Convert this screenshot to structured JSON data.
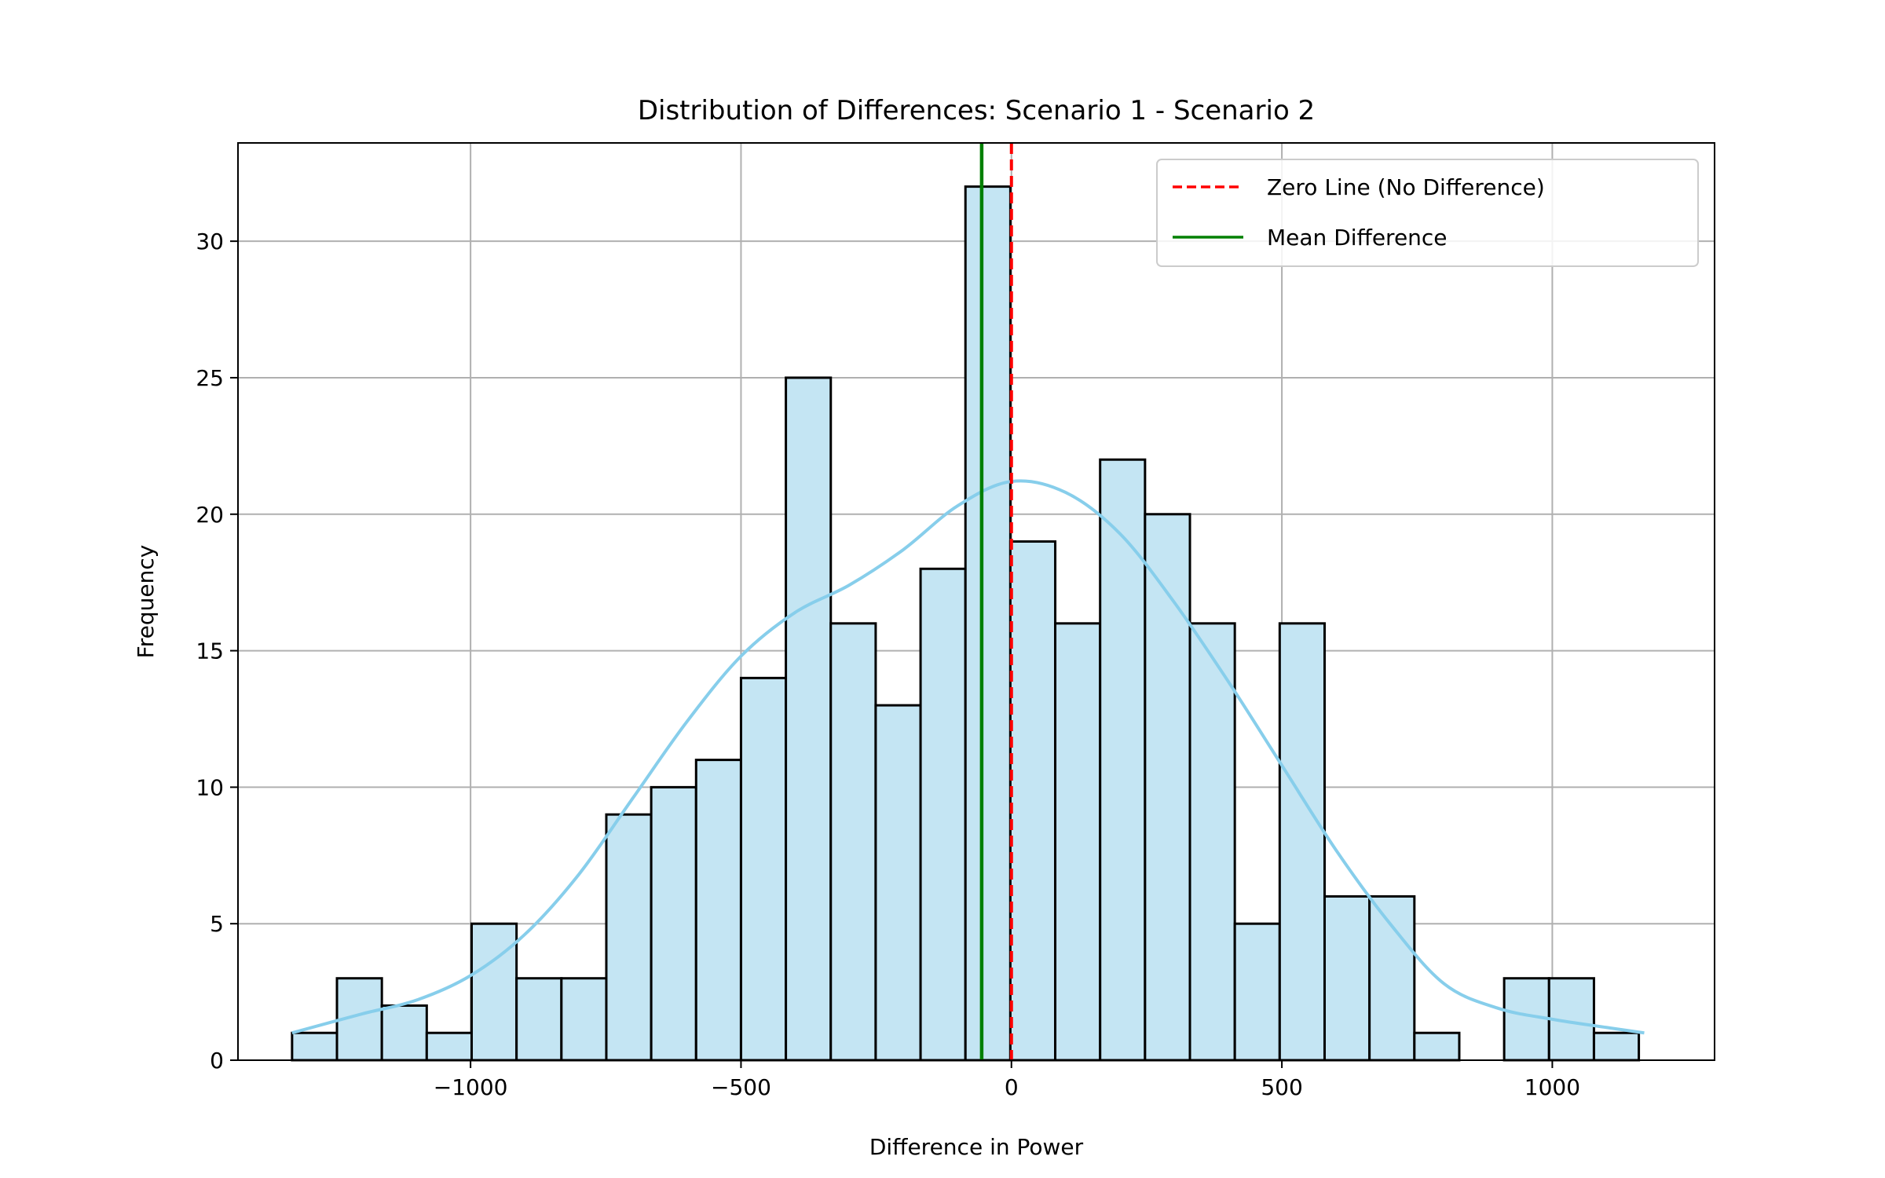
{
  "chart_data": {
    "type": "bar",
    "title": "Distribution of Differences: Scenario 1 - Scenario 2",
    "xlabel": "Difference in Power",
    "ylabel": "Frequency",
    "xlim": [
      -1430,
      1300
    ],
    "ylim": [
      0,
      33.6
    ],
    "grid": true,
    "legend_position": "top-right",
    "bin_edges": [
      -1330,
      -1247,
      -1164,
      -1081,
      -998,
      -915,
      -832,
      -749,
      -666,
      -583,
      -500,
      -417,
      -334,
      -251,
      -168,
      -85,
      -2,
      81,
      164,
      247,
      330,
      413,
      496,
      579,
      662,
      745,
      828,
      911,
      994,
      1077,
      1160
    ],
    "counts": [
      1,
      3,
      2,
      1,
      5,
      3,
      3,
      9,
      10,
      11,
      14,
      25,
      16,
      13,
      18,
      32,
      19,
      16,
      22,
      20,
      16,
      5,
      16,
      6,
      6,
      1,
      0,
      3,
      3,
      1
    ],
    "kde": {
      "x": [
        -1330,
        -1200,
        -1100,
        -1000,
        -900,
        -800,
        -700,
        -600,
        -500,
        -400,
        -300,
        -200,
        -100,
        0,
        100,
        200,
        300,
        400,
        500,
        600,
        700,
        800,
        900,
        1000,
        1100,
        1170
      ],
      "y": [
        1.0,
        1.7,
        2.2,
        3.1,
        4.6,
        6.8,
        9.6,
        12.4,
        14.8,
        16.4,
        17.4,
        18.7,
        20.3,
        21.2,
        20.8,
        19.3,
        16.8,
        13.9,
        10.8,
        7.7,
        5.0,
        2.8,
        1.9,
        1.5,
        1.2,
        1.0
      ],
      "color": "#87ceeb"
    },
    "zero_line": {
      "x": 0,
      "color": "#ff0000",
      "label": "Zero Line (No Difference)"
    },
    "mean_line": {
      "x": -55,
      "color": "#008000",
      "label": "Mean Difference"
    },
    "bar_fill": "#c4e5f3",
    "bar_edge": "#000000",
    "x_ticks": [
      -1000,
      -500,
      0,
      500,
      1000
    ],
    "x_tick_labels": [
      "−1000",
      "−500",
      "0",
      "500",
      "1000"
    ],
    "y_ticks": [
      0,
      5,
      10,
      15,
      20,
      25,
      30
    ],
    "y_tick_labels": [
      "0",
      "5",
      "10",
      "15",
      "20",
      "25",
      "30"
    ]
  }
}
